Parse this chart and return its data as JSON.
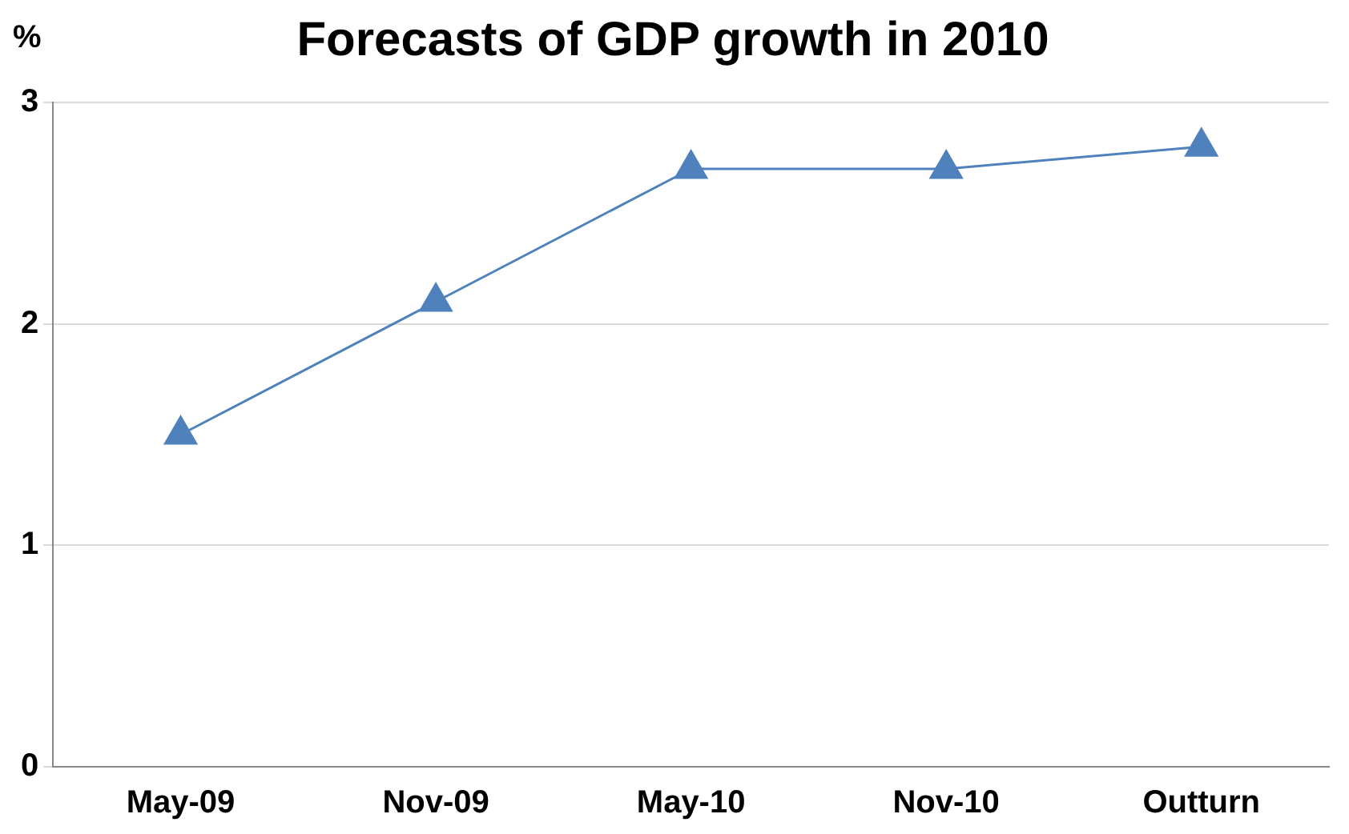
{
  "chart_data": {
    "type": "line",
    "title": "Forecasts of GDP growth in 2010",
    "ylabel": "%",
    "categories": [
      "May-09",
      "Nov-09",
      "May-10",
      "Nov-10",
      "Outturn"
    ],
    "series": [
      {
        "color": "#4f81bd",
        "values": [
          1.5,
          2.1,
          2.7,
          2.7,
          2.8
        ]
      }
    ],
    "ylim": [
      0,
      3
    ],
    "yticks": [
      0,
      1,
      2,
      3
    ],
    "grid": "y",
    "legend": false,
    "marker": "triangle",
    "line_style": "solid"
  }
}
